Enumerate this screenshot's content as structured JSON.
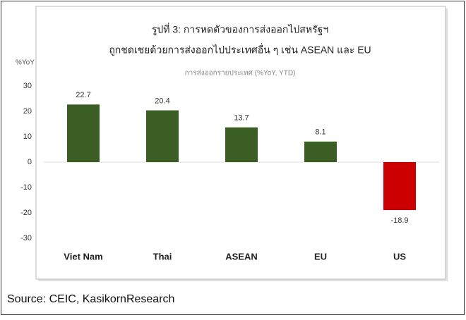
{
  "chart_data": {
    "type": "bar",
    "title": "รูปที่ 3:  การหดตัวของการส่งออกไปสหรัฐฯ",
    "subtitle": "ถูกชดเชยด้วยการส่งออกไปประเทศอื่น ๆ เช่น ASEAN และ EU",
    "y_label": "%YoY",
    "series_label": "การส่งออกรายประเทศ (%YoY, YTD)",
    "categories": [
      "Viet Nam",
      "Thai",
      "ASEAN",
      "EU",
      "US"
    ],
    "values": [
      22.7,
      20.4,
      13.7,
      8.1,
      -18.9
    ],
    "colors": [
      "#3b5e25",
      "#3b5e25",
      "#3b5e25",
      "#3b5e25",
      "#cc0000"
    ],
    "ylim": [
      -30,
      30
    ],
    "yticks": [
      -30,
      -20,
      -10,
      0,
      10,
      20,
      30
    ],
    "grid": false,
    "source": "Source: CEIC, KasikornResearch"
  }
}
